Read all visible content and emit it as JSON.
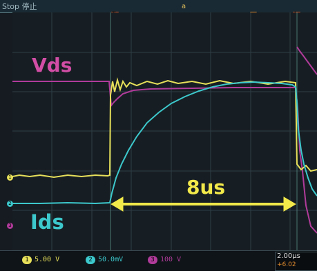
{
  "status_text": "Stop  停止",
  "markers": {
    "trigger": "T",
    "cursor_a": "a",
    "cursor_b": "b"
  },
  "labels": {
    "vds": "Vds",
    "ids": "Ids",
    "duration": "8us"
  },
  "channels": [
    {
      "num": "1",
      "scale": "5.00 V",
      "color": "#e7e05a"
    },
    {
      "num": "2",
      "scale": "50.0mV",
      "color": "#3cc8cc"
    },
    {
      "num": "3",
      "scale": "100 V",
      "color": "#b03b9a"
    }
  ],
  "timebase": "2.00µs",
  "delay": "+6.02",
  "colors": {
    "ch1": "#e7e05a",
    "ch2": "#3cc8cc",
    "ch3": "#b03b9a",
    "label_vds": "#d24ea6",
    "arrow": "#f2e94a"
  }
}
